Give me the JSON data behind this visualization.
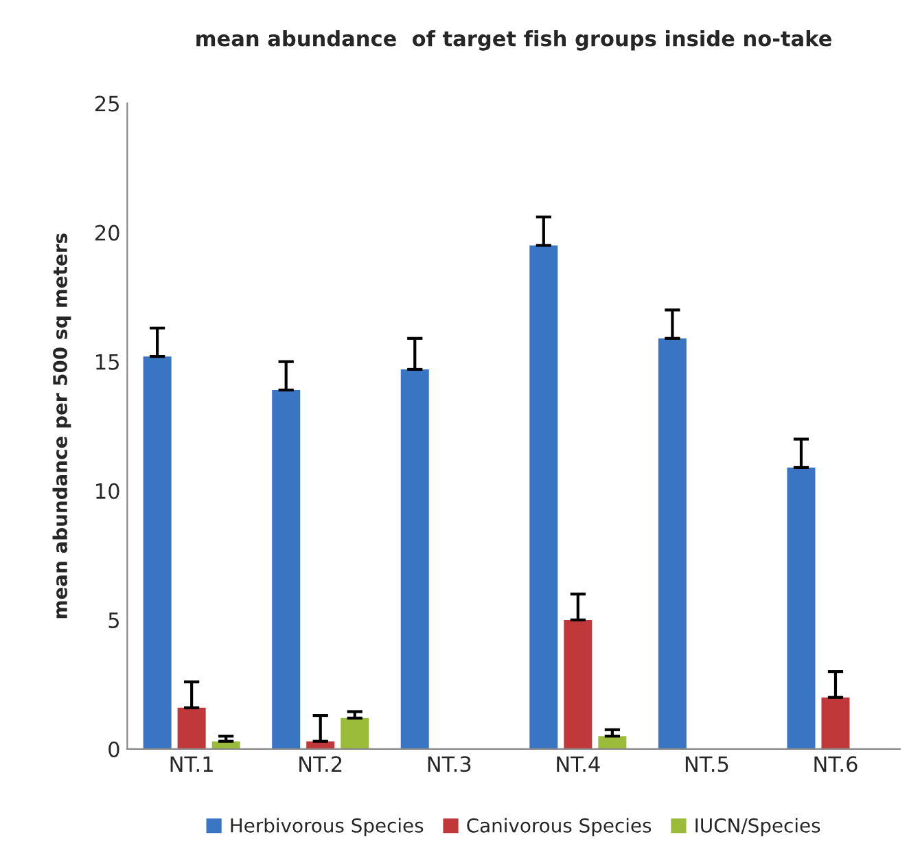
{
  "chart_data": {
    "type": "bar",
    "title": "mean abundance  of target fish groups inside no-take",
    "ylabel": "mean abundance per 500 sq meters",
    "categories": [
      "NT.1",
      "NT.2",
      "NT.3",
      "NT.4",
      "NT.5",
      "NT.6"
    ],
    "series": [
      {
        "name": "Herbivorous Species",
        "color": "#3a75c4",
        "values": [
          15.2,
          13.9,
          14.7,
          19.5,
          15.9,
          10.9
        ],
        "errors": [
          [
            15.2,
            16.3
          ],
          [
            13.9,
            15.0
          ],
          [
            14.7,
            15.9
          ],
          [
            19.5,
            20.6
          ],
          [
            15.9,
            17.0
          ],
          [
            10.9,
            12.0
          ]
        ]
      },
      {
        "name": "Canivorous Species",
        "color": "#c0383a",
        "values": [
          1.6,
          0.3,
          null,
          5.0,
          null,
          2.0
        ],
        "errors": [
          [
            1.6,
            2.6
          ],
          [
            0.3,
            1.3
          ],
          null,
          [
            5.0,
            6.0
          ],
          null,
          [
            2.0,
            3.0
          ]
        ]
      },
      {
        "name": "IUCN/Species",
        "color": "#9bbb3b",
        "values": [
          0.3,
          1.2,
          null,
          0.5,
          null,
          null
        ],
        "errors": [
          [
            0.3,
            0.5
          ],
          [
            1.2,
            1.45
          ],
          null,
          [
            0.5,
            0.75
          ],
          null,
          null
        ]
      }
    ],
    "ylim": [
      0,
      25
    ],
    "yticks": [
      0,
      5,
      10,
      15,
      20,
      25
    ],
    "grid": false,
    "legend": "bottom"
  }
}
